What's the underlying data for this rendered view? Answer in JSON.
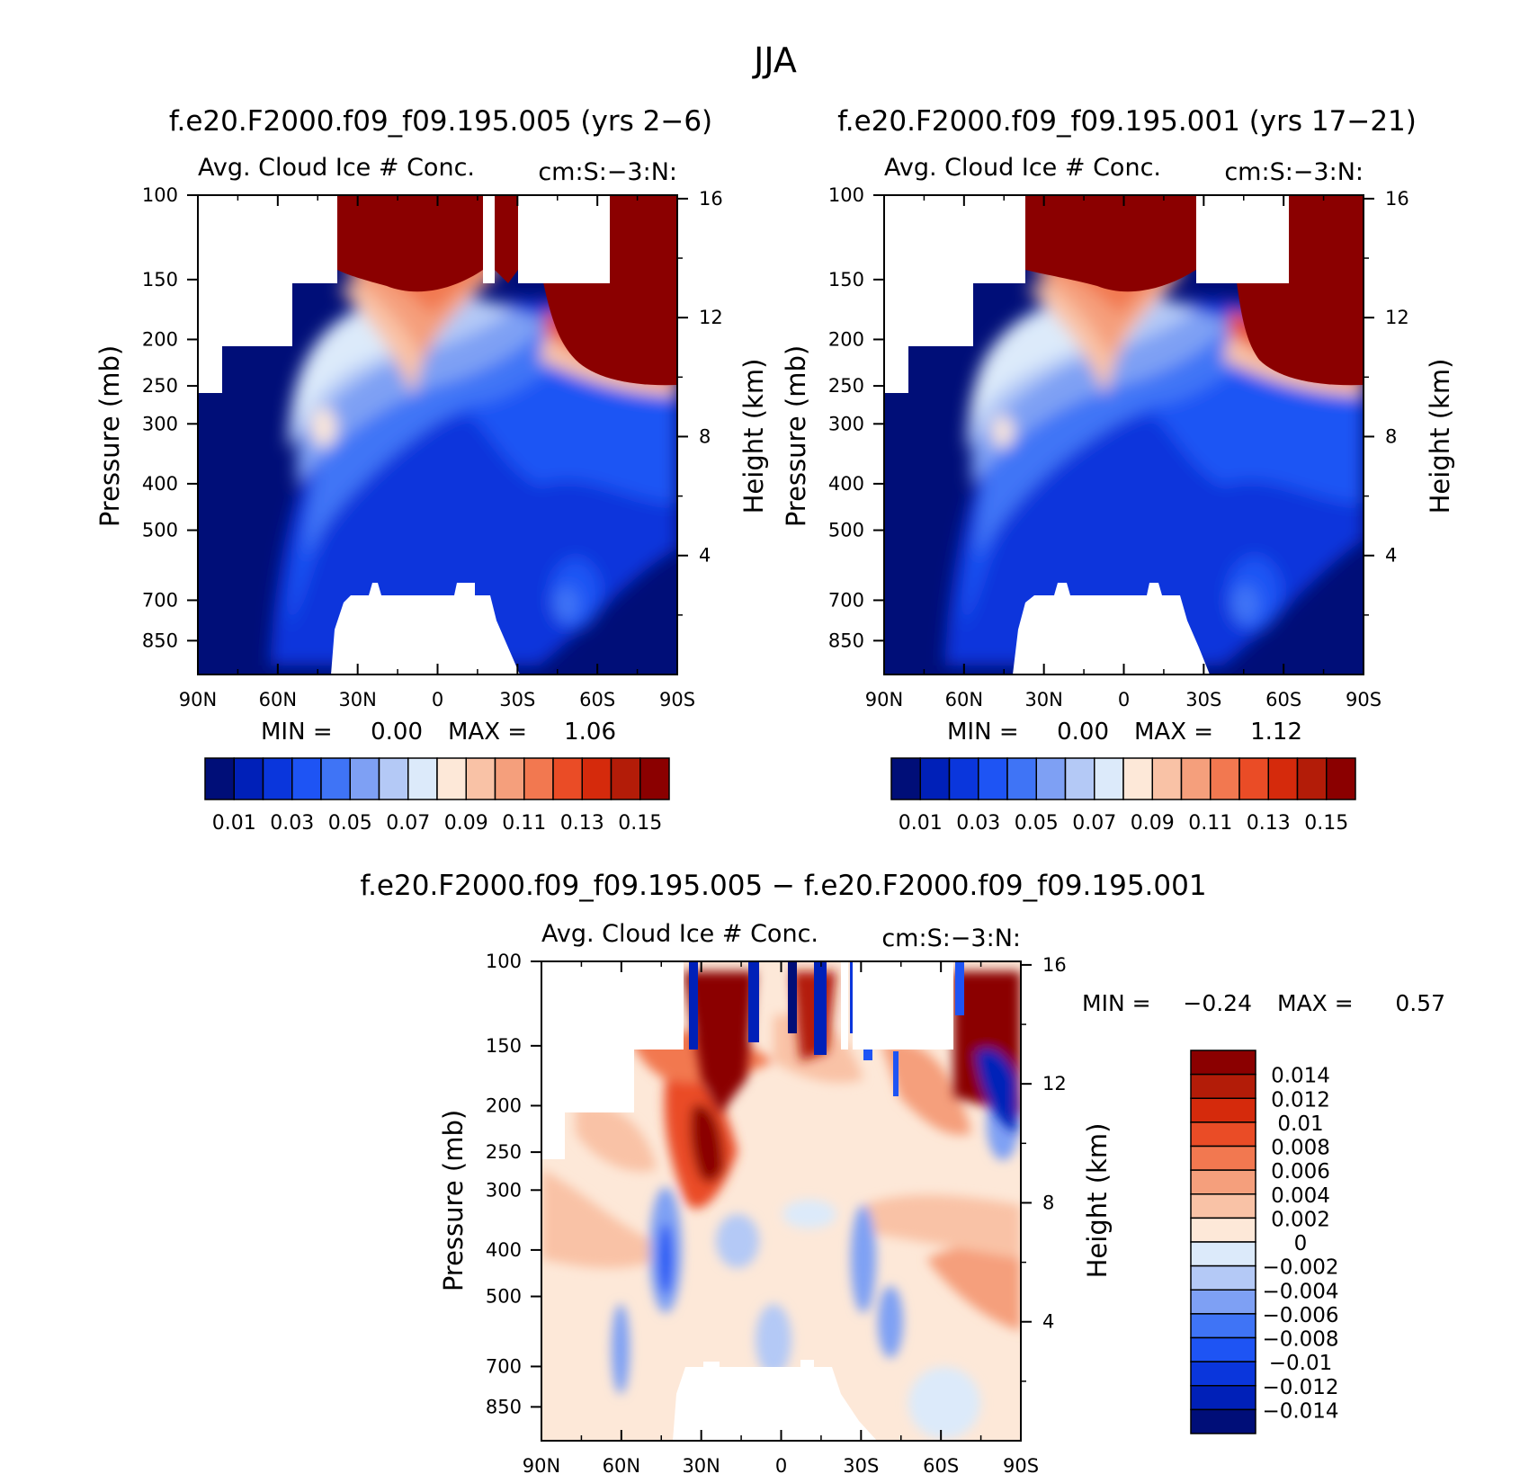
{
  "page_title": "JJA",
  "chart_data": [
    {
      "type": "heatmap",
      "title": "f.e20.F2000.f09_f09.195.005 (yrs 2-6)",
      "subtitle_left": "Avg. Cloud Ice # Conc.",
      "subtitle_right": "cm:S:-3:N:",
      "ylabel": "Pressure (mb)",
      "ylabel_right": "Height (km)",
      "x_ticks": [
        "90N",
        "60N",
        "30N",
        "0",
        "30S",
        "60S",
        "90S"
      ],
      "y_ticks": [
        "100",
        "150",
        "200",
        "250",
        "300",
        "400",
        "500",
        "700",
        "850"
      ],
      "y_right_ticks": [
        "16",
        "12",
        "8",
        "4"
      ],
      "min_label": "MIN =",
      "min_value": "0.00",
      "max_label": "MAX =",
      "max_value": "1.06",
      "colorbar_labels": [
        "0.01",
        "0.03",
        "0.05",
        "0.07",
        "0.09",
        "0.11",
        "0.13",
        "0.15"
      ],
      "colorbar_colors": [
        "#000e78",
        "#0020b8",
        "#0a36dc",
        "#1e54f4",
        "#3f74f6",
        "#7ea0f4",
        "#b4c9f6",
        "#dceafa",
        "#fde8d8",
        "#f9c2a6",
        "#f59f7c",
        "#f27850",
        "#ea4c26",
        "#d52a0c",
        "#b31c08",
        "#8b0000"
      ]
    },
    {
      "type": "heatmap",
      "title": "f.e20.F2000.f09_f09.195.001 (yrs 17-21)",
      "subtitle_left": "Avg. Cloud Ice # Conc.",
      "subtitle_right": "cm:S:-3:N:",
      "ylabel": "Pressure (mb)",
      "ylabel_right": "Height (km)",
      "x_ticks": [
        "90N",
        "60N",
        "30N",
        "0",
        "30S",
        "60S",
        "90S"
      ],
      "y_ticks": [
        "100",
        "150",
        "200",
        "250",
        "300",
        "400",
        "500",
        "700",
        "850"
      ],
      "y_right_ticks": [
        "16",
        "12",
        "8",
        "4"
      ],
      "min_label": "MIN =",
      "min_value": "0.00",
      "max_label": "MAX =",
      "max_value": "1.12",
      "colorbar_labels": [
        "0.01",
        "0.03",
        "0.05",
        "0.07",
        "0.09",
        "0.11",
        "0.13",
        "0.15"
      ],
      "colorbar_colors": [
        "#000e78",
        "#0020b8",
        "#0a36dc",
        "#1e54f4",
        "#3f74f6",
        "#7ea0f4",
        "#b4c9f6",
        "#dceafa",
        "#fde8d8",
        "#f9c2a6",
        "#f59f7c",
        "#f27850",
        "#ea4c26",
        "#d52a0c",
        "#b31c08",
        "#8b0000"
      ]
    },
    {
      "type": "heatmap",
      "title": "f.e20.F2000.f09_f09.195.005 - f.e20.F2000.f09_f09.195.001",
      "subtitle_left": "Avg. Cloud Ice # Conc.",
      "subtitle_right": "cm:S:-3:N:",
      "ylabel": "Pressure (mb)",
      "ylabel_right": "Height (km)",
      "x_ticks": [
        "90N",
        "60N",
        "30N",
        "0",
        "30S",
        "60S",
        "90S"
      ],
      "y_ticks": [
        "100",
        "150",
        "200",
        "250",
        "300",
        "400",
        "500",
        "700",
        "850"
      ],
      "y_right_ticks": [
        "16",
        "12",
        "8",
        "4"
      ],
      "min_label": "MIN =",
      "min_value": "-0.24",
      "max_label": "MAX =",
      "max_value": "0.57",
      "colorbar_labels": [
        "0.014",
        "0.012",
        "0.01",
        "0.008",
        "0.006",
        "0.004",
        "0.002",
        "0",
        "-0.002",
        "-0.004",
        "-0.006",
        "-0.008",
        "-0.01",
        "-0.012",
        "-0.014"
      ],
      "colorbar_colors": [
        "#8b0000",
        "#b31c08",
        "#d52a0c",
        "#ea4c26",
        "#f27850",
        "#f59f7c",
        "#f9c2a6",
        "#fde8d8",
        "#dceafa",
        "#b4c9f6",
        "#7ea0f4",
        "#3f74f6",
        "#1e54f4",
        "#0a36dc",
        "#0020b8",
        "#000e78"
      ]
    }
  ]
}
